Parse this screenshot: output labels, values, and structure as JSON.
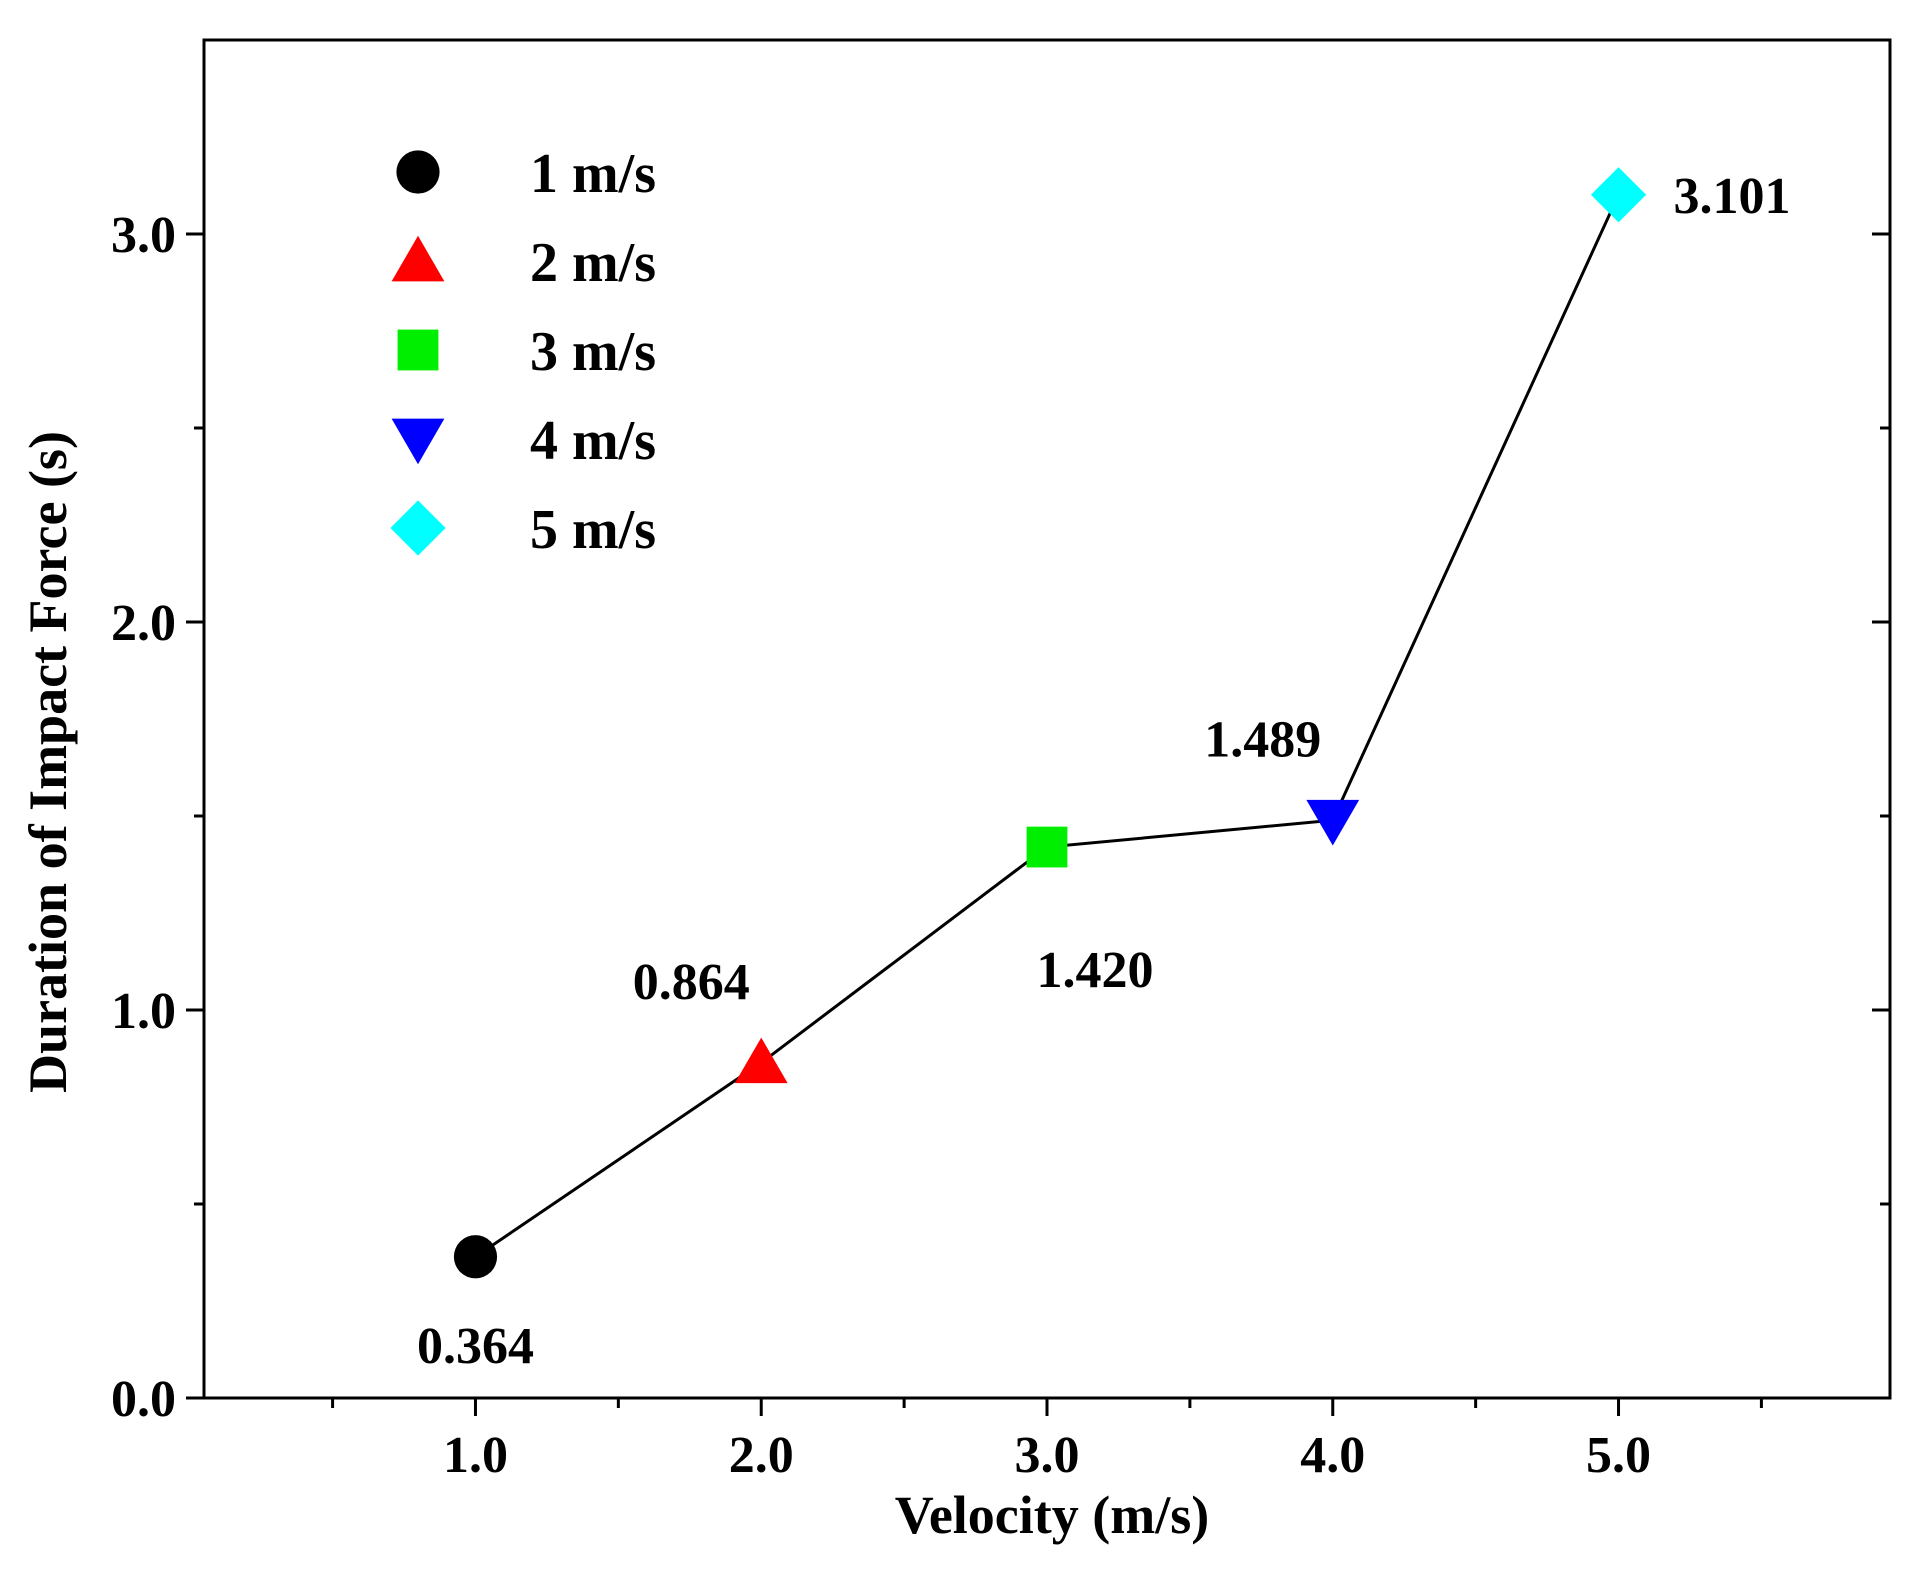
{
  "chart_data": {
    "type": "line",
    "title": "",
    "xlabel": "Velocity (m/s)",
    "ylabel": "Duration of Impact Force (s)",
    "xlim": [
      0.05,
      5.95
    ],
    "ylim": [
      0.0,
      3.5
    ],
    "xticks": [
      1.0,
      2.0,
      3.0,
      4.0,
      5.0
    ],
    "xtick_labels": [
      "1.0",
      "2.0",
      "3.0",
      "4.0",
      "5.0"
    ],
    "x_minor_ticks": [
      0.5,
      1.5,
      2.5,
      3.5,
      4.5,
      5.5
    ],
    "yticks": [
      0.0,
      1.0,
      2.0,
      3.0
    ],
    "ytick_labels": [
      "0.0",
      "1.0",
      "2.0",
      "3.0"
    ],
    "y_minor_ticks": [
      0.5,
      1.5,
      2.5
    ],
    "grid": false,
    "legend_position": "top-left",
    "points": [
      {
        "x": 1,
        "y": 0.364,
        "label": "0.364",
        "legend": "1 m/s",
        "marker": "circle",
        "color": "#000000",
        "label_position": "below"
      },
      {
        "x": 2,
        "y": 0.864,
        "label": "0.864",
        "legend": "2 m/s",
        "marker": "triangle-up",
        "color": "#ff0000",
        "label_position": "above-left"
      },
      {
        "x": 3,
        "y": 1.42,
        "label": "1.420",
        "legend": "3 m/s",
        "marker": "square",
        "color": "#00ee00",
        "label_position": "below-right"
      },
      {
        "x": 4,
        "y": 1.489,
        "label": "1.489",
        "legend": "4 m/s",
        "marker": "triangle-down",
        "color": "#0000ff",
        "label_position": "above-left"
      },
      {
        "x": 5,
        "y": 3.101,
        "label": "3.101",
        "legend": "5 m/s",
        "marker": "diamond",
        "color": "#00ffff",
        "label_position": "right"
      }
    ],
    "line_color": "#000000"
  }
}
